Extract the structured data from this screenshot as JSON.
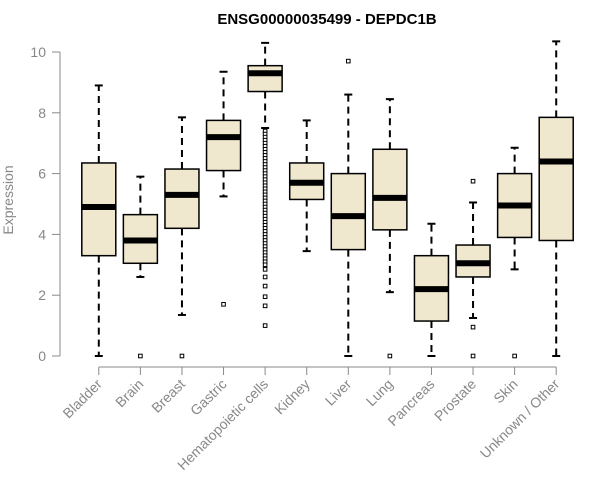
{
  "chart_data": {
    "type": "boxplot",
    "title": "ENSG00000035499 - DEPDC1B",
    "xlabel": "",
    "ylabel": "Expression",
    "ylim": [
      0,
      10
    ],
    "yticks": [
      0,
      2,
      4,
      6,
      8,
      10
    ],
    "categories": [
      "Bladder",
      "Brain",
      "Breast",
      "Gastric",
      "Hematopoietic cells",
      "Kidney",
      "Liver",
      "Lung",
      "Pancreas",
      "Prostate",
      "Skin",
      "Unknown / Other"
    ],
    "boxes": [
      {
        "min": 0.0,
        "q1": 3.3,
        "median": 4.9,
        "q3": 6.35,
        "max": 8.9,
        "outliers": []
      },
      {
        "min": 2.6,
        "q1": 3.05,
        "median": 3.8,
        "q3": 4.65,
        "max": 5.9,
        "outliers": [
          0.0
        ]
      },
      {
        "min": 1.35,
        "q1": 4.2,
        "median": 5.3,
        "q3": 6.15,
        "max": 7.85,
        "outliers": [
          0.0
        ]
      },
      {
        "min": 5.25,
        "q1": 6.1,
        "median": 7.2,
        "q3": 7.75,
        "max": 9.35,
        "outliers": [
          1.7
        ]
      },
      {
        "min": 7.5,
        "q1": 8.7,
        "median": 9.3,
        "q3": 9.55,
        "max": 10.3,
        "outliers": [
          7.4,
          7.3,
          7.2,
          7.1,
          7.0,
          6.9,
          6.8,
          6.7,
          6.6,
          6.5,
          6.4,
          6.3,
          6.2,
          6.1,
          6.0,
          5.9,
          5.8,
          5.7,
          5.6,
          5.5,
          5.4,
          5.3,
          5.2,
          5.1,
          5.0,
          4.9,
          4.8,
          4.7,
          4.6,
          4.5,
          4.4,
          4.3,
          4.2,
          4.1,
          4.0,
          3.9,
          3.8,
          3.7,
          3.6,
          3.5,
          3.4,
          3.3,
          3.2,
          3.1,
          3.0,
          2.85,
          2.6,
          2.3,
          1.95,
          1.65,
          1.0
        ]
      },
      {
        "min": 3.45,
        "q1": 5.15,
        "median": 5.7,
        "q3": 6.35,
        "max": 7.75,
        "outliers": []
      },
      {
        "min": 0.0,
        "q1": 3.5,
        "median": 4.6,
        "q3": 6.0,
        "max": 8.6,
        "outliers": [
          9.7
        ]
      },
      {
        "min": 2.1,
        "q1": 4.15,
        "median": 5.2,
        "q3": 6.8,
        "max": 8.45,
        "outliers": [
          0.0
        ]
      },
      {
        "min": 0.0,
        "q1": 1.15,
        "median": 2.2,
        "q3": 3.3,
        "max": 4.35,
        "outliers": []
      },
      {
        "min": 1.25,
        "q1": 2.6,
        "median": 3.05,
        "q3": 3.65,
        "max": 5.05,
        "outliers": [
          5.75,
          0.95,
          0.0
        ]
      },
      {
        "min": 2.85,
        "q1": 3.9,
        "median": 4.95,
        "q3": 6.0,
        "max": 6.85,
        "outliers": [
          0.0
        ]
      },
      {
        "min": 0.0,
        "q1": 3.8,
        "median": 6.4,
        "q3": 7.85,
        "max": 10.35,
        "outliers": []
      }
    ],
    "colors": {
      "box_fill": "#efe8cf",
      "box_stroke": "#000000",
      "median": "#000000",
      "axis": "#888888"
    }
  }
}
